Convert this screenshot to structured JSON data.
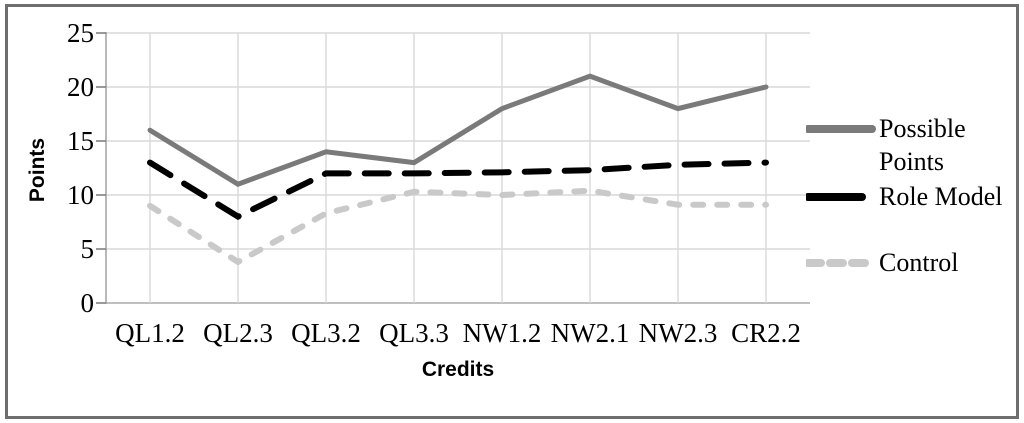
{
  "chart_data": {
    "type": "line",
    "title": "",
    "xlabel": "Credits",
    "ylabel": "Points",
    "categories": [
      "QL1.2",
      "QL2.3",
      "QL3.2",
      "QL3.3",
      "NW1.2",
      "NW2.1",
      "NW2.3",
      "CR2.2"
    ],
    "yticks": [
      0,
      5,
      10,
      15,
      20,
      25
    ],
    "ylim": [
      0,
      25
    ],
    "grid": true,
    "legend_position": "right",
    "series": [
      {
        "name": "Possible Points",
        "values": [
          16,
          11,
          14,
          13,
          18,
          21,
          18,
          20
        ],
        "color": "#7a7a7a",
        "dash": "solid"
      },
      {
        "name": "Role Model",
        "values": [
          13,
          8,
          12,
          12,
          12.1,
          12.3,
          12.8,
          13
        ],
        "color": "#000000",
        "dash": "long-dash"
      },
      {
        "name": "Control",
        "values": [
          9,
          3.8,
          8.3,
          10.3,
          10,
          10.4,
          9.1,
          9.1
        ],
        "color": "#c9c9c9",
        "dash": "dash"
      }
    ],
    "colors": {
      "gridline": "#d9d9d9",
      "axis": "#a6a6a6",
      "tick": "#808080",
      "border": "#6e6e6e"
    }
  }
}
